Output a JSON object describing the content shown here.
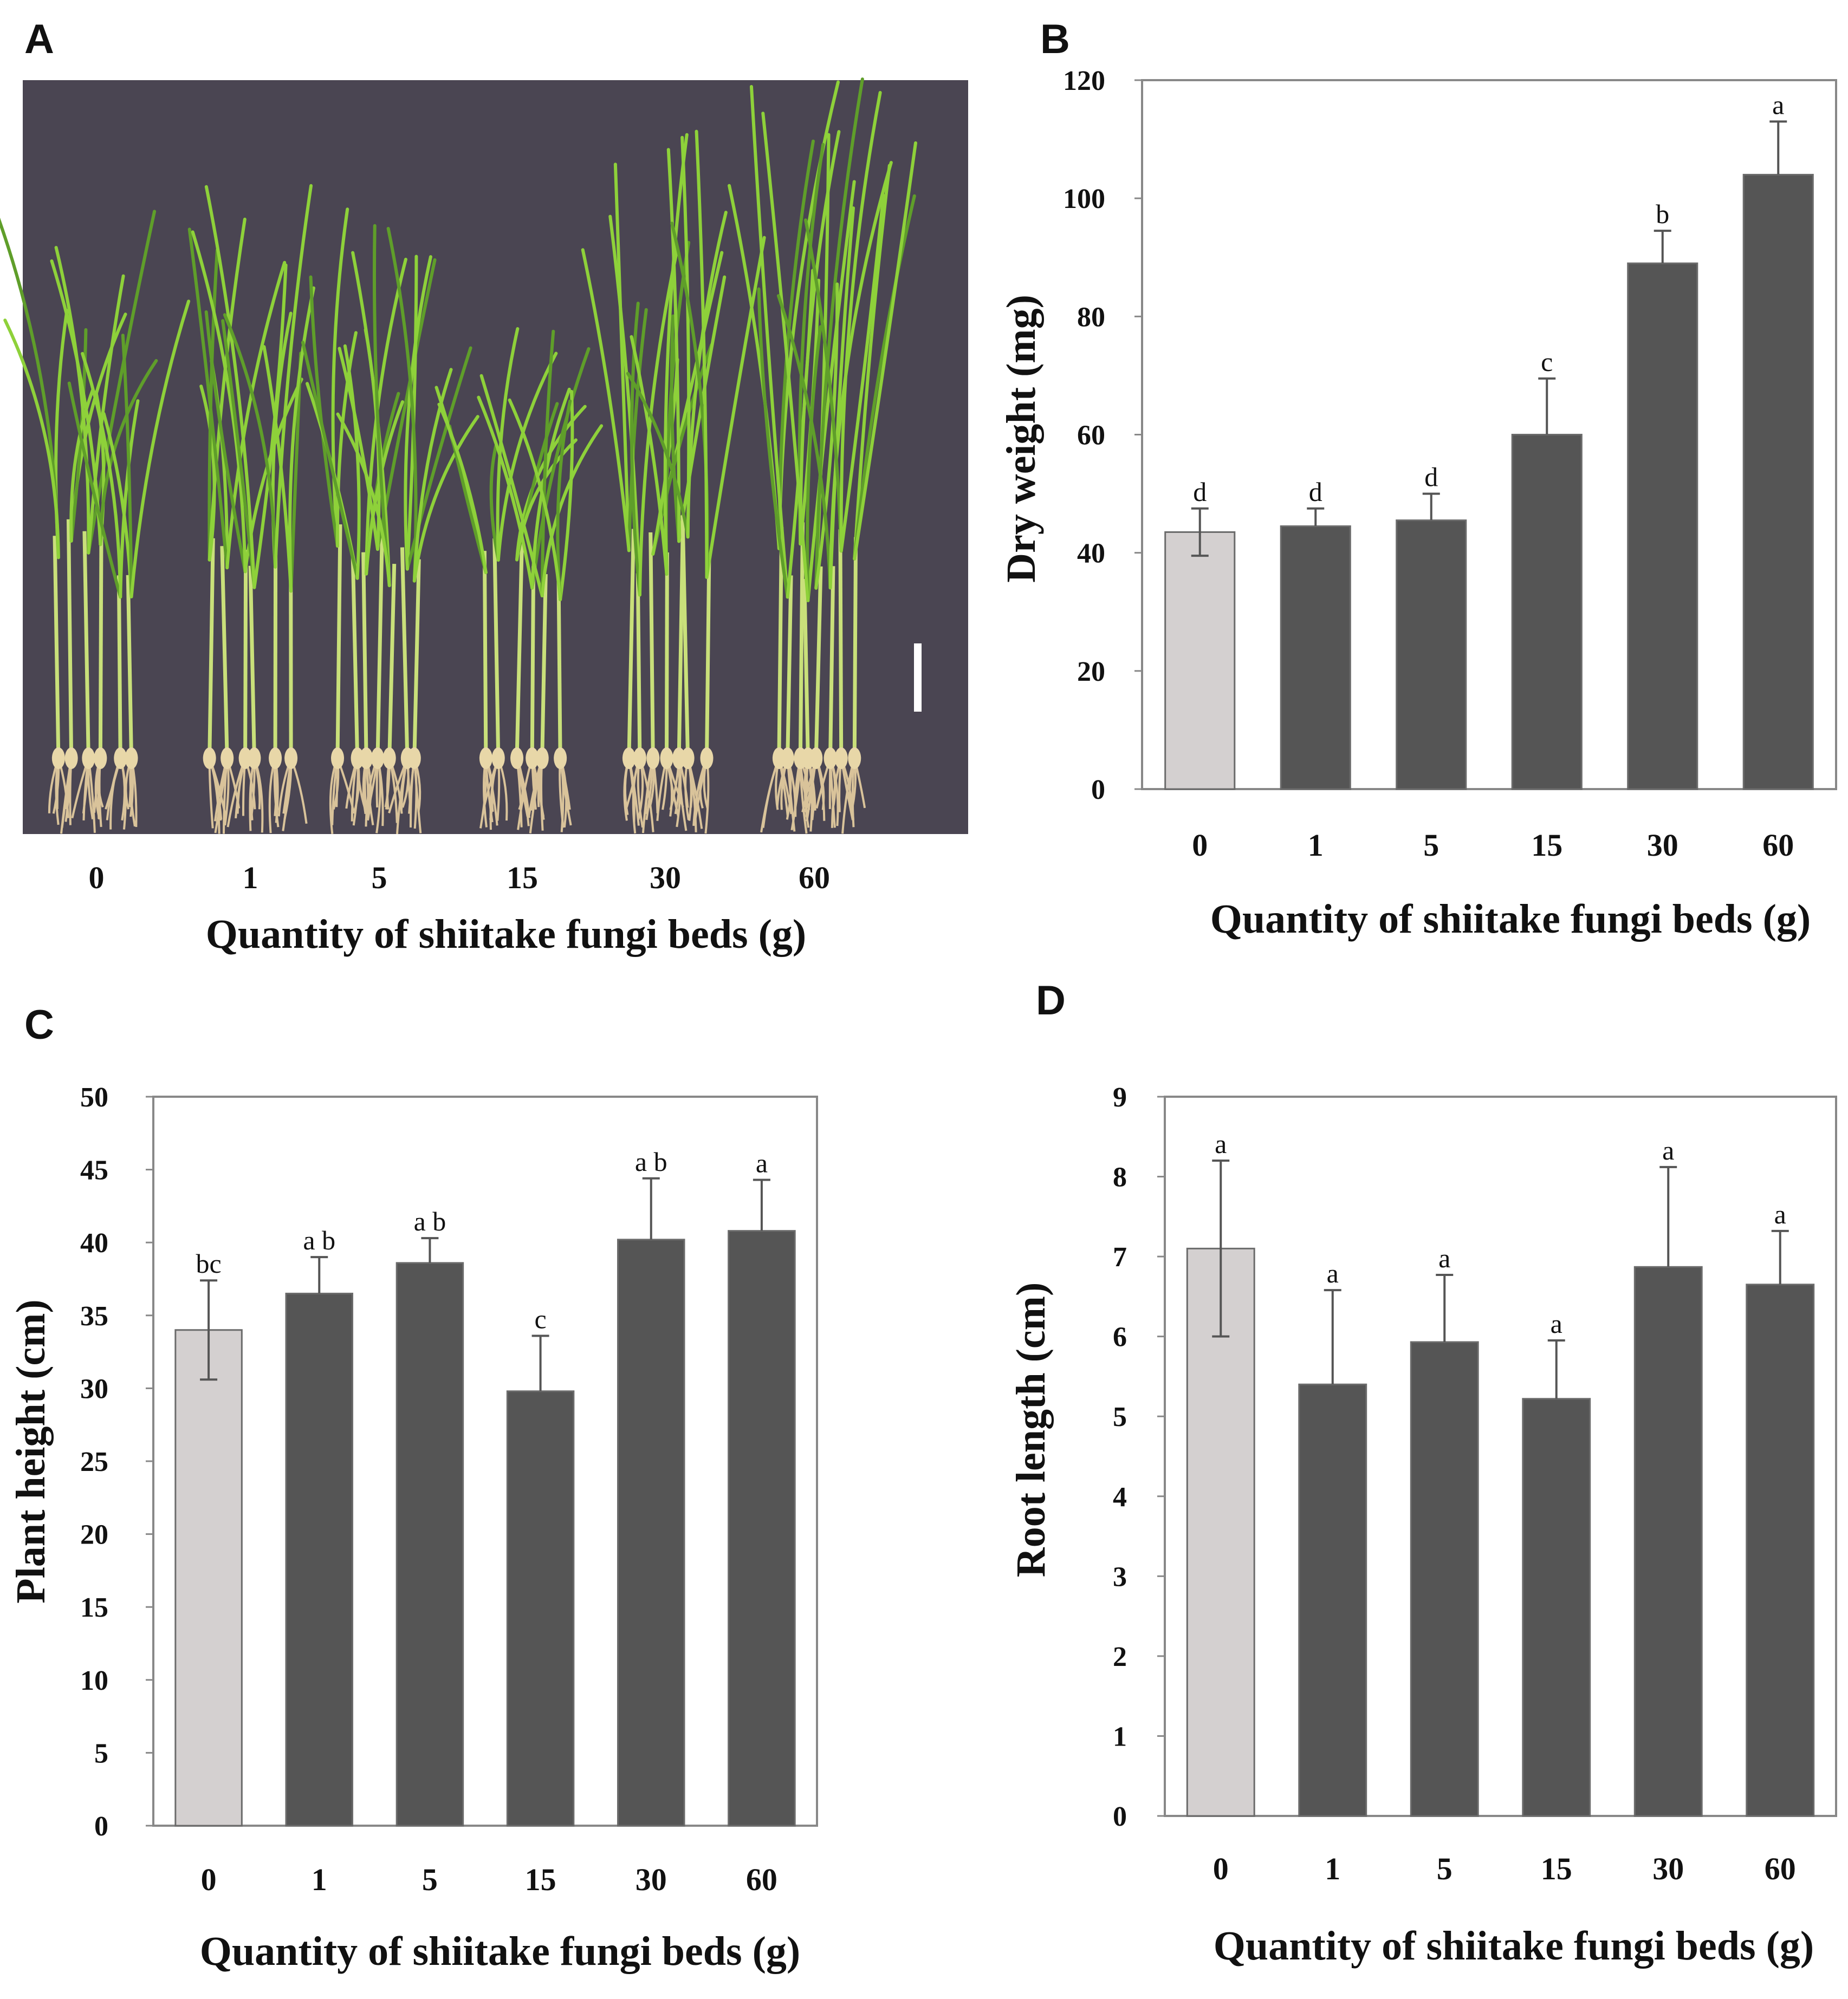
{
  "colors": {
    "control_bar": "#d4d0d0",
    "treatment_bar": "#555555",
    "bar_edge": "#6b6b6b",
    "frame": "#888888",
    "photo_bg": "#4a4552",
    "leaf": "#8ed13a",
    "leaf_dark": "#5f9e2a",
    "root": "#d9c39a"
  },
  "panels": {
    "A": {
      "label": "A",
      "categories": [
        "0",
        "1",
        "5",
        "15",
        "30",
        "60"
      ],
      "xlabel": "Quantity of shiitake fungi beds (g)",
      "image": "photograph of rice seedlings grouped by treatment with white scale bar"
    }
  },
  "chart_data": [
    {
      "id": "B",
      "panel_label": "B",
      "type": "bar",
      "categories": [
        "0",
        "1",
        "5",
        "15",
        "30",
        "60"
      ],
      "values": [
        43.5,
        44.5,
        45.5,
        60,
        89,
        104
      ],
      "errors": [
        4,
        3,
        4.5,
        9.5,
        5.5,
        9
      ],
      "significance": [
        "d",
        "d",
        "d",
        "c",
        "b",
        "a"
      ],
      "xlabel": "Quantity of shiitake fungi beds (g)",
      "ylabel": "Dry weight (mg)",
      "ylim": [
        0,
        120
      ],
      "yticks": [
        "0",
        "20",
        "40",
        "60",
        "80",
        "100",
        "120"
      ],
      "control_index": 0
    },
    {
      "id": "C",
      "panel_label": "C",
      "type": "bar",
      "categories": [
        "0",
        "1",
        "5",
        "15",
        "30",
        "60"
      ],
      "values": [
        34,
        36.5,
        38.6,
        29.8,
        40.2,
        40.8
      ],
      "errors": [
        3.4,
        2.5,
        1.7,
        3.8,
        4.2,
        3.5
      ],
      "significance": [
        "bc",
        "a b",
        "a b",
        "c",
        "a b",
        "a"
      ],
      "xlabel": "Quantity of shiitake fungi beds (g)",
      "ylabel": "Plant height (cm)",
      "ylim": [
        0,
        50
      ],
      "yticks": [
        "0",
        "5",
        "10",
        "15",
        "20",
        "25",
        "30",
        "35",
        "40",
        "45",
        "50"
      ],
      "control_index": 0
    },
    {
      "id": "D",
      "panel_label": "D",
      "type": "bar",
      "categories": [
        "0",
        "1",
        "5",
        "15",
        "30",
        "60"
      ],
      "values": [
        7.1,
        5.4,
        5.93,
        5.22,
        6.87,
        6.65
      ],
      "errors": [
        1.1,
        1.18,
        0.84,
        0.73,
        1.25,
        0.67
      ],
      "significance": [
        "a",
        "a",
        "a",
        "a",
        "a",
        "a"
      ],
      "xlabel": "Quantity of shiitake fungi beds (g)",
      "ylabel": "Root length (cm)",
      "ylim": [
        0,
        9
      ],
      "yticks": [
        "0",
        "1",
        "2",
        "3",
        "4",
        "5",
        "6",
        "7",
        "8",
        "9"
      ],
      "control_index": 0
    }
  ]
}
